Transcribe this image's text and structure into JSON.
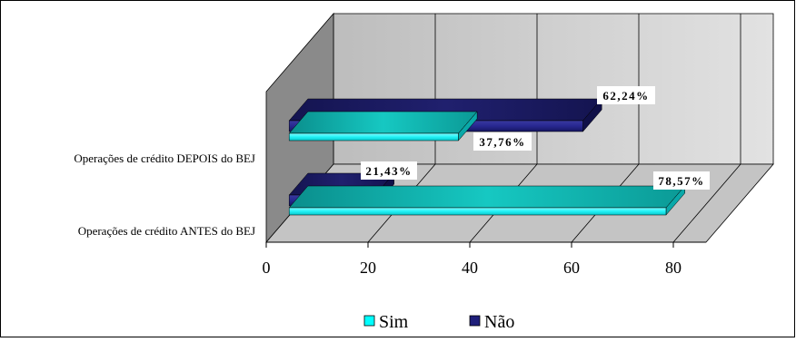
{
  "chart_data": {
    "type": "bar",
    "orientation": "horizontal",
    "three_d": true,
    "categories": [
      "Operações de crédito ANTES do BEJ",
      "Operações de crédito DEPOIS do BEJ"
    ],
    "series": [
      {
        "name": "Sim",
        "values": [
          78.57,
          37.76
        ],
        "labels": [
          "78,57%",
          "37,76%"
        ],
        "color": "#00FFFF"
      },
      {
        "name": "Não",
        "values": [
          21.43,
          62.24
        ],
        "labels": [
          "21,43%",
          "62,24%"
        ],
        "color": "#1F1F7A"
      }
    ],
    "x_ticks": [
      "0",
      "20",
      "40",
      "60",
      "80"
    ],
    "xlim": [
      0,
      80
    ],
    "grid": true,
    "legend_position": "bottom"
  }
}
